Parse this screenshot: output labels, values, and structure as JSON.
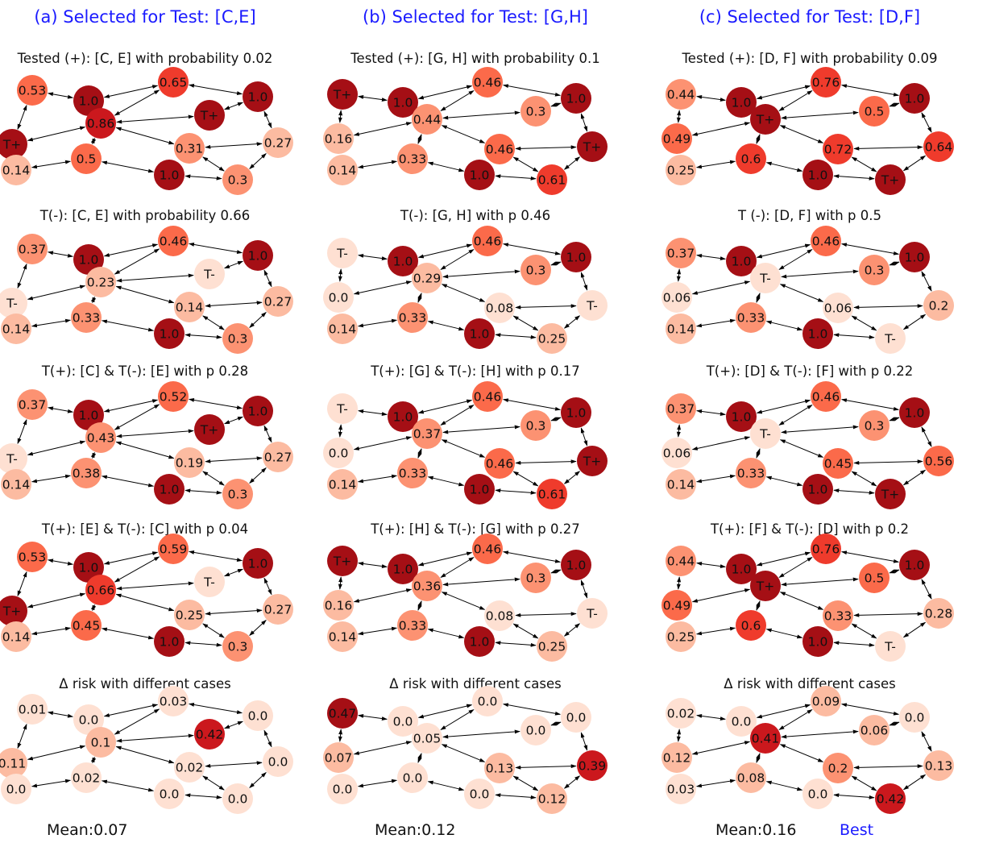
{
  "columns": [
    {
      "title": "(a) Selected for Test: [C,E]",
      "mean": "Mean:0.07",
      "best": "",
      "panels": [
        {
          "title": "Tested (+): [C, E] with probability 0.02",
          "nodes": [
            "0.53",
            "1.0",
            "0.65",
            "1.0",
            "T+",
            "0.86",
            "T+",
            "0.14",
            "0.5",
            "0.31",
            "0.27",
            "1.0",
            "0.3"
          ]
        },
        {
          "title": "T(-): [C, E] with probability 0.66",
          "nodes": [
            "0.37",
            "1.0",
            "0.46",
            "1.0",
            "T-",
            "0.23",
            "T-",
            "0.14",
            "0.33",
            "0.14",
            "0.27",
            "1.0",
            "0.3"
          ]
        },
        {
          "title": "T(+): [C] & T(-): [E] with p 0.28",
          "nodes": [
            "0.37",
            "1.0",
            "0.52",
            "1.0",
            "T-",
            "0.43",
            "T+",
            "0.14",
            "0.38",
            "0.19",
            "0.27",
            "1.0",
            "0.3"
          ]
        },
        {
          "title": "T(+): [E] & T(-): [C] with p 0.04",
          "nodes": [
            "0.53",
            "1.0",
            "0.59",
            "1.0",
            "T+",
            "0.66",
            "T-",
            "0.14",
            "0.45",
            "0.25",
            "0.27",
            "1.0",
            "0.3"
          ]
        },
        {
          "title": "Δ risk with different cases",
          "nodes": [
            "0.01",
            "0.0",
            "0.03",
            "0.0",
            "0.11",
            "0.1",
            "0.42",
            "0.0",
            "0.02",
            "0.02",
            "0.0",
            "0.0",
            "0.0"
          ]
        }
      ]
    },
    {
      "title": "(b) Selected for Test: [G,H]",
      "mean": "Mean:0.12",
      "best": "",
      "panels": [
        {
          "title": "Tested (+): [G, H] with probability 0.1",
          "nodes": [
            "T+",
            "1.0",
            "0.46",
            "1.0",
            "0.16",
            "0.44",
            "0.3",
            "0.14",
            "0.33",
            "0.46",
            "T+",
            "1.0",
            "0.61"
          ]
        },
        {
          "title": "T(-): [G, H] with p 0.46",
          "nodes": [
            "T-",
            "1.0",
            "0.46",
            "1.0",
            "0.0",
            "0.29",
            "0.3",
            "0.14",
            "0.33",
            "0.08",
            "T-",
            "1.0",
            "0.25"
          ]
        },
        {
          "title": "T(+): [G] & T(-): [H] with p 0.17",
          "nodes": [
            "T-",
            "1.0",
            "0.46",
            "1.0",
            "0.0",
            "0.37",
            "0.3",
            "0.14",
            "0.33",
            "0.46",
            "T+",
            "1.0",
            "0.61"
          ]
        },
        {
          "title": "T(+): [H] & T(-): [G] with p 0.27",
          "nodes": [
            "T+",
            "1.0",
            "0.46",
            "1.0",
            "0.16",
            "0.36",
            "0.3",
            "0.14",
            "0.33",
            "0.08",
            "T-",
            "1.0",
            "0.25"
          ]
        },
        {
          "title": "Δ risk with different cases",
          "nodes": [
            "0.47",
            "0.0",
            "0.0",
            "0.0",
            "0.07",
            "0.05",
            "0.0",
            "0.0",
            "0.0",
            "0.13",
            "0.39",
            "0.0",
            "0.12"
          ]
        }
      ]
    },
    {
      "title": "(c) Selected for Test: [D,F]",
      "mean": "Mean:0.16",
      "best": "Best",
      "panels": [
        {
          "title": "Tested (+): [D, F] with probability 0.09",
          "nodes": [
            "0.44",
            "1.0",
            "0.76",
            "1.0",
            "0.49",
            "T+",
            "0.5",
            "0.25",
            "0.6",
            "0.72",
            "0.64",
            "1.0",
            "T+"
          ]
        },
        {
          "title": "T (-): [D, F] with p 0.5",
          "nodes": [
            "0.37",
            "1.0",
            "0.46",
            "1.0",
            "0.06",
            "T-",
            "0.3",
            "0.14",
            "0.33",
            "0.06",
            "0.2",
            "1.0",
            "T-"
          ]
        },
        {
          "title": "T(+): [D] & T(-): [F] with p 0.22",
          "nodes": [
            "0.37",
            "1.0",
            "0.46",
            "1.0",
            "0.06",
            "T-",
            "0.3",
            "0.14",
            "0.33",
            "0.45",
            "0.56",
            "1.0",
            "T+"
          ]
        },
        {
          "title": "T(+): [F] & T(-): [D] with p 0.2",
          "nodes": [
            "0.44",
            "1.0",
            "0.76",
            "1.0",
            "0.49",
            "T+",
            "0.5",
            "0.25",
            "0.6",
            "0.33",
            "0.28",
            "1.0",
            "T-"
          ]
        },
        {
          "title": "Δ risk with different cases",
          "nodes": [
            "0.02",
            "0.0",
            "0.09",
            "0.0",
            "0.12",
            "0.41",
            "0.06",
            "0.03",
            "0.08",
            "0.2",
            "0.13",
            "0.0",
            "0.42"
          ]
        }
      ]
    }
  ],
  "colors": {
    "title_blue": "#1a1aff",
    "scale": [
      "#fee0d2",
      "#fcbba1",
      "#fc9272",
      "#fb6a4a",
      "#ef3b2c",
      "#cb181d",
      "#a50f15"
    ]
  }
}
